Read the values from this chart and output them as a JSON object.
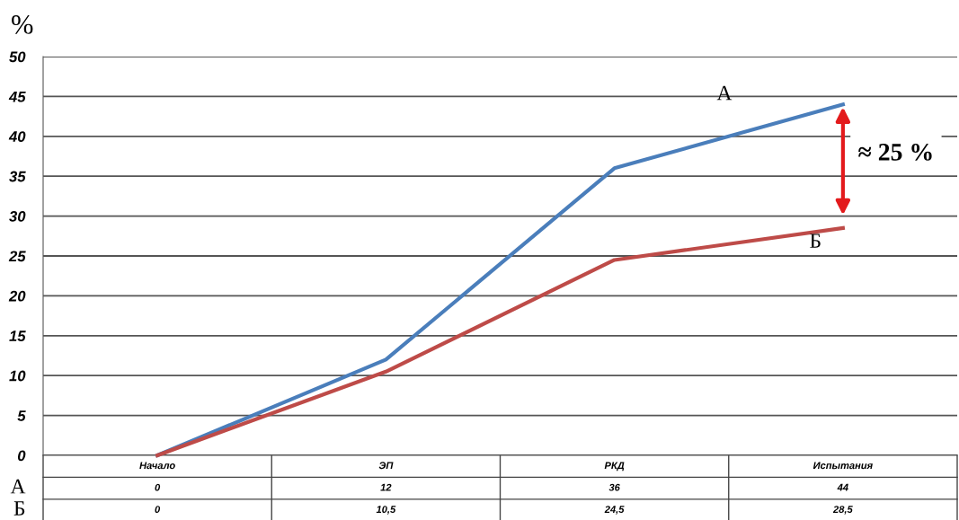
{
  "chart_data": {
    "type": "line",
    "ylabel": "%",
    "categories": [
      "Начало",
      "ЭП",
      "РКД",
      "Испытания"
    ],
    "series": [
      {
        "name": "А",
        "color": "#4a7ebb",
        "values": [
          0,
          12,
          36,
          44
        ],
        "value_labels": [
          "0",
          "12",
          "36",
          "44"
        ]
      },
      {
        "name": "Б",
        "color": "#be4b48",
        "values": [
          0,
          10.5,
          24.5,
          28.5
        ],
        "value_labels": [
          "0",
          "10,5",
          "24,5",
          "28,5"
        ]
      }
    ],
    "ylim": [
      0,
      50
    ],
    "yticks": [
      0,
      5,
      10,
      15,
      20,
      25,
      30,
      35,
      40,
      45,
      50
    ],
    "grid": "y",
    "legend": false,
    "marker": "none",
    "line_style": "solid",
    "annotations": [
      "≈ 25 %"
    ]
  }
}
